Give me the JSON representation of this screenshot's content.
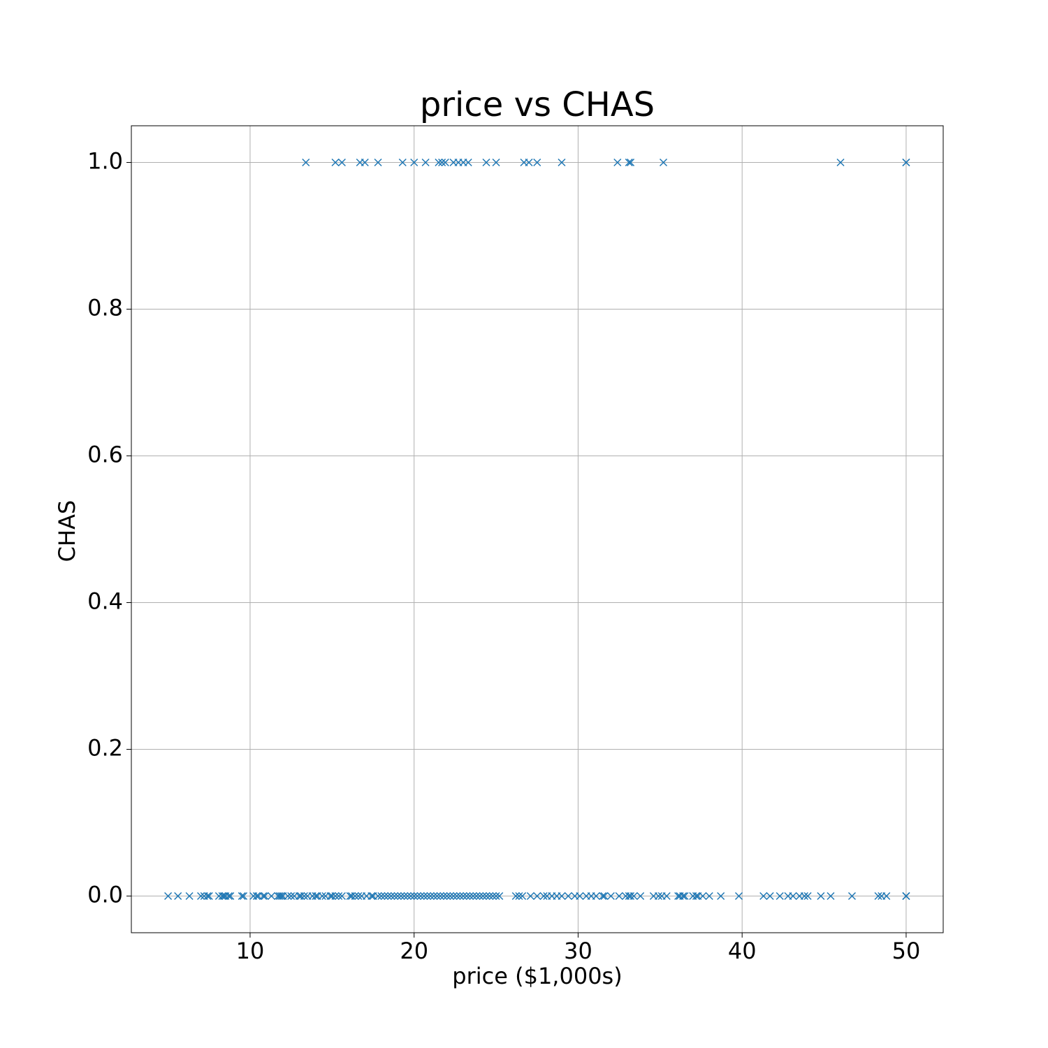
{
  "chart_data": {
    "type": "scatter",
    "title": "price vs CHAS",
    "x_label": "price ($1,000s)",
    "y_label": "CHAS",
    "marker": "x",
    "grid": true,
    "xlim": [
      2.76,
      52.26
    ],
    "ylim": [
      -0.05,
      1.05
    ],
    "xticks": [
      10,
      20,
      30,
      40,
      50
    ],
    "yticks": [
      {
        "value": 0,
        "label": "0.0"
      },
      0.2,
      0.4,
      0.6,
      0.8,
      {
        "value": 1,
        "label": "1.0"
      }
    ],
    "series": [
      {
        "color": "#1f77b4",
        "x": [
          13.4,
          15.2,
          15.6,
          16.7,
          17.0,
          17.8,
          19.3,
          20.0,
          20.7,
          21.5,
          21.7,
          21.9,
          22.4,
          22.7,
          23.0,
          23.3,
          24.4,
          25.0,
          26.7,
          27.0,
          27.5,
          29.0,
          32.4,
          33.1,
          33.2,
          35.2,
          46.0,
          50.0,
          50.0
        ],
        "values": [
          1,
          1,
          1,
          1,
          1,
          1,
          1,
          1,
          1,
          1,
          1,
          1,
          1,
          1,
          1,
          1,
          1,
          1,
          1,
          1,
          1,
          1,
          1,
          1,
          1,
          1,
          1,
          1,
          1
        ]
      },
      {
        "color": "#1f77b4",
        "x": [
          5.0,
          5.6,
          6.3,
          7.0,
          7.2,
          7.4,
          7.5,
          8.1,
          8.3,
          8.4,
          8.5,
          8.7,
          8.8,
          9.5,
          9.6,
          10.2,
          10.4,
          10.5,
          10.8,
          10.9,
          11.3,
          11.7,
          11.8,
          11.9,
          12.0,
          12.3,
          12.5,
          12.7,
          13.0,
          13.1,
          13.3,
          13.5,
          13.8,
          14.0,
          14.1,
          14.4,
          14.6,
          14.9,
          15.0,
          15.2,
          15.4,
          15.6,
          16.1,
          16.2,
          16.4,
          16.6,
          16.8,
          17.1,
          17.4,
          17.5,
          17.8,
          18.0,
          18.2,
          18.4,
          18.6,
          18.8,
          19.0,
          19.2,
          19.4,
          19.6,
          19.8,
          20.0,
          20.2,
          20.4,
          20.6,
          20.8,
          21.0,
          21.2,
          21.4,
          21.6,
          21.8,
          22.0,
          22.2,
          22.4,
          22.6,
          22.8,
          23.0,
          23.2,
          23.4,
          23.6,
          23.8,
          24.0,
          24.2,
          24.4,
          24.6,
          24.8,
          25.0,
          25.2,
          26.2,
          26.4,
          26.6,
          27.1,
          27.5,
          27.9,
          28.1,
          28.4,
          28.7,
          29.0,
          29.4,
          29.8,
          30.1,
          30.5,
          30.8,
          31.1,
          31.5,
          31.6,
          32.0,
          32.5,
          32.9,
          33.1,
          33.2,
          33.4,
          33.8,
          34.6,
          34.9,
          35.1,
          35.4,
          36.1,
          36.2,
          36.4,
          36.5,
          37.0,
          37.2,
          37.3,
          37.6,
          38.0,
          38.7,
          39.8,
          41.3,
          41.7,
          42.3,
          42.8,
          43.1,
          43.5,
          43.8,
          44.0,
          44.8,
          45.4,
          46.7,
          48.3,
          48.5,
          48.8,
          50.0,
          50.0,
          50.0
        ],
        "values": [
          0,
          0,
          0,
          0,
          0,
          0,
          0,
          0,
          0,
          0,
          0,
          0,
          0,
          0,
          0,
          0,
          0,
          0,
          0,
          0,
          0,
          0,
          0,
          0,
          0,
          0,
          0,
          0,
          0,
          0,
          0,
          0,
          0,
          0,
          0,
          0,
          0,
          0,
          0,
          0,
          0,
          0,
          0,
          0,
          0,
          0,
          0,
          0,
          0,
          0,
          0,
          0,
          0,
          0,
          0,
          0,
          0,
          0,
          0,
          0,
          0,
          0,
          0,
          0,
          0,
          0,
          0,
          0,
          0,
          0,
          0,
          0,
          0,
          0,
          0,
          0,
          0,
          0,
          0,
          0,
          0,
          0,
          0,
          0,
          0,
          0,
          0,
          0,
          0,
          0,
          0,
          0,
          0,
          0,
          0,
          0,
          0,
          0,
          0,
          0,
          0,
          0,
          0,
          0,
          0,
          0,
          0,
          0,
          0,
          0,
          0,
          0,
          0,
          0,
          0,
          0,
          0,
          0,
          0,
          0,
          0,
          0,
          0,
          0,
          0,
          0,
          0,
          0,
          0,
          0,
          0,
          0,
          0,
          0,
          0,
          0,
          0,
          0,
          0,
          0,
          0,
          0,
          0,
          0,
          0
        ]
      }
    ]
  }
}
